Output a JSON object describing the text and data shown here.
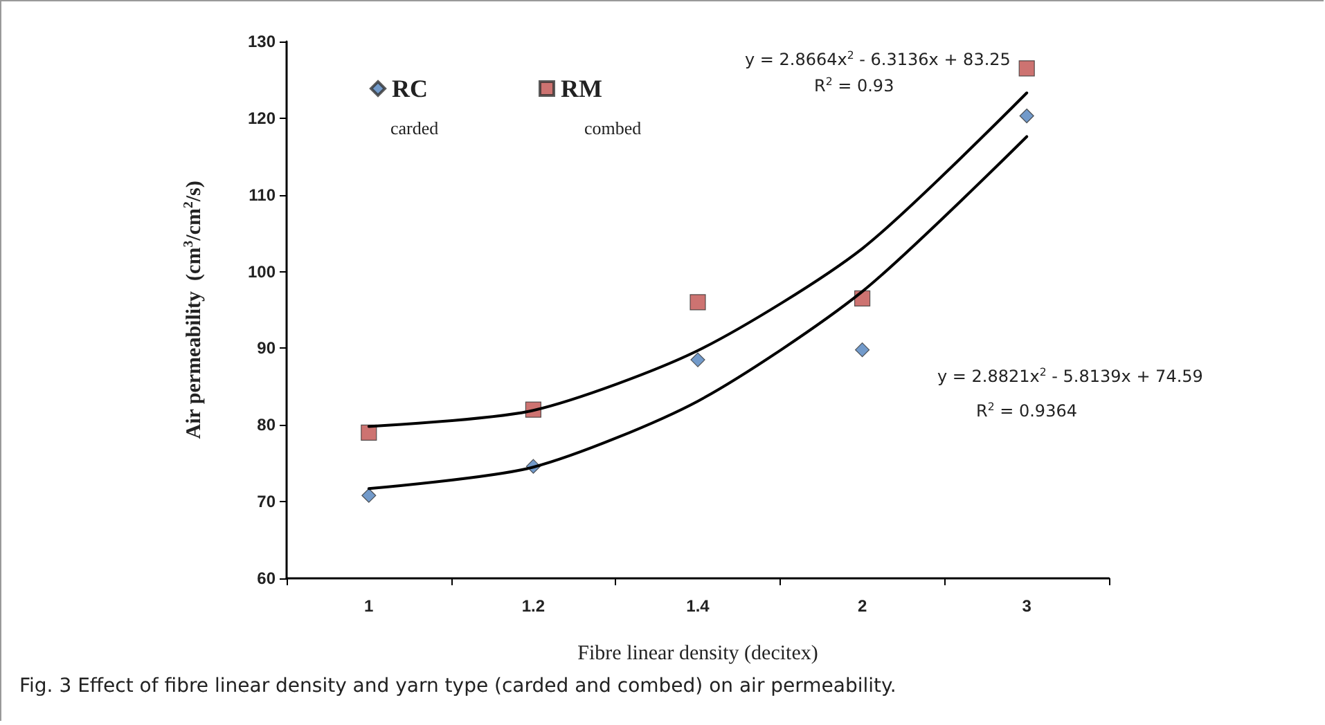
{
  "chart_data": {
    "type": "scatter",
    "xlabel": "Fibre linear density (decitex)",
    "ylabel": "Air permeability  (cm$^{3}$/cm$^{2}$/s)",
    "categories": [
      "1",
      "1.2",
      "1.4",
      "2",
      "3"
    ],
    "series": [
      {
        "name": "RC",
        "color": "#4f81bd",
        "marker": "diamond",
        "values": [
          70.8,
          74.6,
          88.5,
          89.8,
          120.3
        ]
      },
      {
        "name": "RM",
        "color": "#c0504d",
        "marker": "square",
        "values": [
          79,
          82,
          96,
          96.5,
          126.5
        ]
      },
      {
        "type": "line",
        "color": "#000000",
        "marker": "none",
        "line_style": "solid",
        "x": [
          "1",
          "1.2",
          "1.4",
          "2",
          "3"
        ],
        "values": [
          79.8,
          81.9,
          89.7,
          103,
          123.3
        ]
      },
      {
        "type": "line",
        "color": "#000000",
        "marker": "none",
        "line_style": "solid",
        "x": [
          "1",
          "1.2",
          "1.4",
          "2",
          "3"
        ],
        "values": [
          71.7,
          74.5,
          83.1,
          97.4,
          117.6
        ]
      }
    ],
    "ylim": [
      60,
      130
    ],
    "yticks": [
      60,
      70,
      80,
      90,
      100,
      110,
      120,
      130
    ],
    "grid": false,
    "legend": "top left",
    "annotations": [
      "carded",
      "combed",
      "y = 2.8664x$^{2}$ - 6.3136x + 83.25",
      "R$^{2}$ = 0.93",
      "y = 2.8821x$^{2}$ - 5.8139x + 74.59",
      "R$^{2}$ = 0.9364",
      "Fig. 3  Effect of fibre linear density and yarn type (carded and combed) on air permeability."
    ]
  }
}
